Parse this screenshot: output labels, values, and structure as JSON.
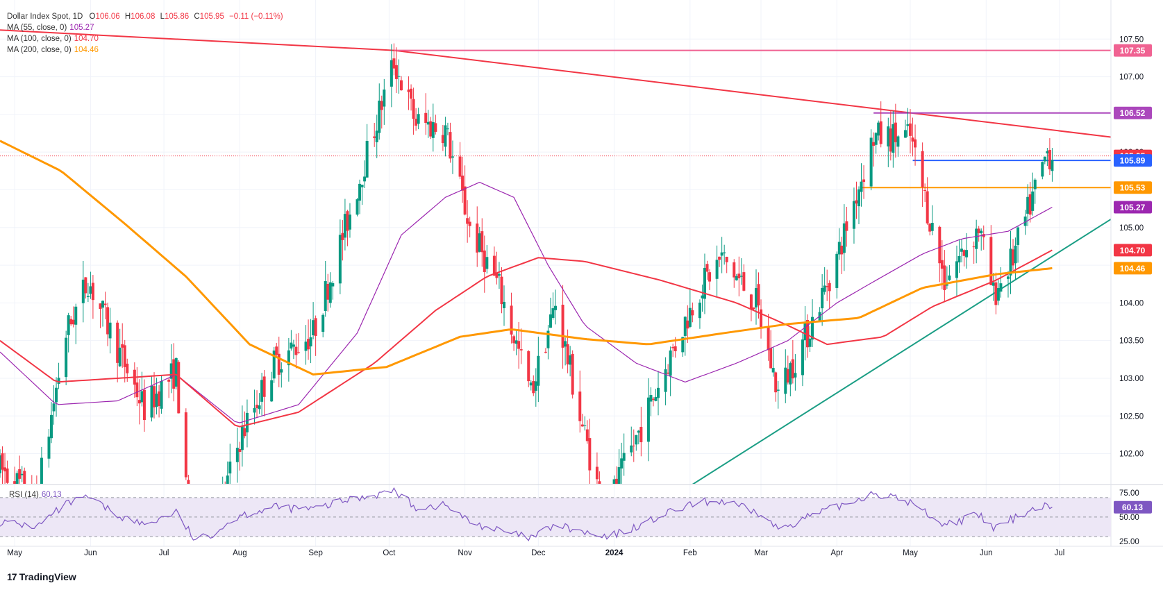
{
  "header": {
    "symbol": "Dollar Index Spot, 1D",
    "ohlc": [
      {
        "label": "O",
        "value": "106.06"
      },
      {
        "label": "H",
        "value": "106.08"
      },
      {
        "label": "L",
        "value": "105.86"
      },
      {
        "label": "C",
        "value": "105.95"
      }
    ],
    "change": "−0.11 (−0.11%)"
  },
  "indicators": [
    {
      "label": "MA (55, close, 0)",
      "value": "105.27",
      "color": "#9c27b0"
    },
    {
      "label": "MA (100, close, 0)",
      "value": "104.70",
      "color": "#f23645"
    },
    {
      "label": "MA (200, close, 0)",
      "value": "104.46",
      "color": "#ff9800"
    }
  ],
  "rsi": {
    "label": "RSI (14)",
    "value": "60.13",
    "color": "#7e57c2"
  },
  "brand": {
    "logo": "17",
    "name": "TradingView"
  },
  "colors": {
    "up": "#089981",
    "down": "#f23645",
    "ma55": "#9c27b0",
    "ma100": "#f23645",
    "ma200": "#ff9800",
    "trend_up": "#1b9e85",
    "trend_down": "#f23645",
    "level_107_35": "#f06292",
    "level_106_52": "#ab47bc",
    "level_105_89": "#2962ff",
    "level_105_53": "#ff9800",
    "price_last": "#f23645",
    "rsi_line": "#7e57c2",
    "rsi_fill": "#ede7f6"
  },
  "chart_data": {
    "type": "candlestick",
    "title": "Dollar Index Spot, 1D",
    "y_ticks": [
      "107.50",
      "107.00",
      "106.50",
      "106.00",
      "105.50",
      "105.00",
      "104.50",
      "104.00",
      "103.50",
      "103.00",
      "102.50",
      "102.00"
    ],
    "ylim": [
      101.6,
      107.65
    ],
    "x_labels": [
      "May",
      "Jun",
      "Jul",
      "Aug",
      "Sep",
      "Oct",
      "Nov",
      "Dec",
      "2024",
      "Feb",
      "Mar",
      "Apr",
      "May",
      "Jun",
      "Jul"
    ],
    "x_range": [
      "2023-04-25",
      "2024-07-22"
    ],
    "last_price": {
      "value": 105.95,
      "label": "105.95"
    },
    "price_labels": [
      {
        "value": 107.35,
        "label": "107.35",
        "color": "#f06292"
      },
      {
        "value": 106.52,
        "label": "106.52",
        "color": "#ab47bc"
      },
      {
        "value": 105.95,
        "label": "105.95",
        "color": "#f23645"
      },
      {
        "value": 105.89,
        "label": "105.89",
        "color": "#2962ff"
      },
      {
        "value": 105.53,
        "label": "105.53",
        "color": "#ff9800"
      },
      {
        "value": 105.27,
        "label": "105.27",
        "color": "#9c27b0"
      },
      {
        "value": 104.7,
        "label": "104.70",
        "color": "#f23645"
      },
      {
        "value": 104.46,
        "label": "104.46",
        "color": "#ff9800"
      }
    ],
    "horizontal_levels": [
      {
        "value": 107.35,
        "from": "2023-10-03",
        "to": "2024-07-22",
        "color": "#f06292"
      },
      {
        "value": 106.52,
        "from": "2024-04-16",
        "to": "2024-07-22",
        "color": "#ab47bc"
      },
      {
        "value": 105.89,
        "from": "2024-05-02",
        "to": "2024-07-22",
        "color": "#2962ff"
      },
      {
        "value": 105.53,
        "from": "2024-04-11",
        "to": "2024-07-22",
        "color": "#ff9800"
      }
    ],
    "trendlines": [
      {
        "name": "resistance",
        "points": [
          [
            "2023-04-25",
            107.62
          ],
          [
            "2023-10-03",
            107.35
          ],
          [
            "2024-07-22",
            106.2
          ]
        ],
        "color": "#f23645"
      },
      {
        "name": "support",
        "points": [
          [
            "2024-01-31",
            101.55
          ],
          [
            "2024-07-22",
            105.11
          ]
        ],
        "color": "#1b9e85"
      }
    ],
    "price_path": [
      [
        "2023-04-25",
        101.8
      ],
      [
        "2023-05-10",
        101.4
      ],
      [
        "2023-05-22",
        103.6
      ],
      [
        "2023-05-31",
        104.3
      ],
      [
        "2023-06-12",
        103.4
      ],
      [
        "2023-06-23",
        102.6
      ],
      [
        "2023-07-06",
        103.1
      ],
      [
        "2023-07-14",
        99.9
      ],
      [
        "2023-07-20",
        100.8
      ],
      [
        "2023-08-01",
        102.2
      ],
      [
        "2023-08-15",
        103.2
      ],
      [
        "2023-08-31",
        103.6
      ],
      [
        "2023-09-15",
        105.2
      ],
      [
        "2023-10-03",
        107.2
      ],
      [
        "2023-10-12",
        106.4
      ],
      [
        "2023-10-24",
        106.3
      ],
      [
        "2023-11-03",
        105.0
      ],
      [
        "2023-11-15",
        104.2
      ],
      [
        "2023-11-28",
        102.8
      ],
      [
        "2023-12-08",
        104.0
      ],
      [
        "2023-12-18",
        102.5
      ],
      [
        "2023-12-28",
        101.2
      ],
      [
        "2024-01-10",
        102.2
      ],
      [
        "2024-01-24",
        103.3
      ],
      [
        "2024-02-05",
        104.2
      ],
      [
        "2024-02-14",
        104.6
      ],
      [
        "2024-02-28",
        104.0
      ],
      [
        "2024-03-08",
        102.8
      ],
      [
        "2024-03-20",
        103.6
      ],
      [
        "2024-04-01",
        104.6
      ],
      [
        "2024-04-16",
        106.2
      ],
      [
        "2024-05-01",
        106.2
      ],
      [
        "2024-05-15",
        104.3
      ],
      [
        "2024-05-29",
        105.0
      ],
      [
        "2024-06-04",
        104.1
      ],
      [
        "2024-06-12",
        104.6
      ],
      [
        "2024-06-19",
        105.3
      ],
      [
        "2024-06-26",
        106.0
      ],
      [
        "2024-06-28",
        105.95
      ]
    ],
    "series": [
      {
        "name": "MA (55, close, 0)",
        "color": "#9c27b0",
        "points": [
          [
            "2023-04-25",
            103.35
          ],
          [
            "2023-05-18",
            102.65
          ],
          [
            "2023-06-12",
            102.7
          ],
          [
            "2023-07-06",
            103.05
          ],
          [
            "2023-07-31",
            102.4
          ],
          [
            "2023-08-25",
            102.65
          ],
          [
            "2023-09-18",
            103.6
          ],
          [
            "2023-10-06",
            104.9
          ],
          [
            "2023-10-24",
            105.4
          ],
          [
            "2023-11-07",
            105.6
          ],
          [
            "2023-11-21",
            105.4
          ],
          [
            "2023-12-05",
            104.5
          ],
          [
            "2023-12-20",
            103.7
          ],
          [
            "2024-01-10",
            103.2
          ],
          [
            "2024-01-30",
            102.95
          ],
          [
            "2024-02-20",
            103.2
          ],
          [
            "2024-03-12",
            103.5
          ],
          [
            "2024-04-01",
            104.0
          ],
          [
            "2024-04-17",
            104.3
          ],
          [
            "2024-05-06",
            104.65
          ],
          [
            "2024-05-22",
            104.85
          ],
          [
            "2024-06-10",
            104.95
          ],
          [
            "2024-06-28",
            105.27
          ]
        ]
      },
      {
        "name": "MA (100, close, 0)",
        "color": "#f23645",
        "points": [
          [
            "2023-04-25",
            103.5
          ],
          [
            "2023-05-18",
            102.95
          ],
          [
            "2023-06-12",
            103.0
          ],
          [
            "2023-07-06",
            103.05
          ],
          [
            "2023-07-31",
            102.35
          ],
          [
            "2023-08-25",
            102.55
          ],
          [
            "2023-09-25",
            103.2
          ],
          [
            "2023-10-20",
            103.9
          ],
          [
            "2023-11-10",
            104.35
          ],
          [
            "2023-12-01",
            104.6
          ],
          [
            "2023-12-20",
            104.55
          ],
          [
            "2024-01-20",
            104.3
          ],
          [
            "2024-02-20",
            104.0
          ],
          [
            "2024-03-12",
            103.7
          ],
          [
            "2024-03-28",
            103.45
          ],
          [
            "2024-04-20",
            103.55
          ],
          [
            "2024-05-10",
            103.95
          ],
          [
            "2024-06-05",
            104.3
          ],
          [
            "2024-06-28",
            104.7
          ]
        ]
      },
      {
        "name": "MA (200, close, 0)",
        "color": "#ff9800",
        "points": [
          [
            "2023-04-25",
            106.15
          ],
          [
            "2023-05-20",
            105.75
          ],
          [
            "2023-06-15",
            105.05
          ],
          [
            "2023-07-10",
            104.35
          ],
          [
            "2023-08-05",
            103.45
          ],
          [
            "2023-08-31",
            103.05
          ],
          [
            "2023-09-30",
            103.15
          ],
          [
            "2023-10-30",
            103.55
          ],
          [
            "2023-11-20",
            103.65
          ],
          [
            "2023-12-20",
            103.52
          ],
          [
            "2024-01-15",
            103.45
          ],
          [
            "2024-02-15",
            103.6
          ],
          [
            "2024-03-12",
            103.72
          ],
          [
            "2024-04-10",
            103.8
          ],
          [
            "2024-05-06",
            104.2
          ],
          [
            "2024-06-05",
            104.38
          ],
          [
            "2024-06-28",
            104.46
          ]
        ]
      }
    ],
    "rsi": {
      "name": "RSI (14)",
      "ylim": [
        20,
        82
      ],
      "y_ticks": [
        "75.00",
        "50.00",
        "25.00"
      ],
      "bands": [
        70,
        50,
        30
      ],
      "last": 60.13,
      "points": [
        [
          "2023-04-25",
          45
        ],
        [
          "2023-05-10",
          40
        ],
        [
          "2023-05-22",
          63
        ],
        [
          "2023-05-31",
          70
        ],
        [
          "2023-06-12",
          52
        ],
        [
          "2023-06-23",
          42
        ],
        [
          "2023-07-06",
          55
        ],
        [
          "2023-07-14",
          25
        ],
        [
          "2023-07-20",
          32
        ],
        [
          "2023-08-01",
          52
        ],
        [
          "2023-08-15",
          60
        ],
        [
          "2023-08-31",
          58
        ],
        [
          "2023-09-15",
          68
        ],
        [
          "2023-10-03",
          77
        ],
        [
          "2023-10-12",
          60
        ],
        [
          "2023-10-24",
          62
        ],
        [
          "2023-11-03",
          45
        ],
        [
          "2023-11-15",
          36
        ],
        [
          "2023-11-28",
          28
        ],
        [
          "2023-12-08",
          42
        ],
        [
          "2023-12-18",
          35
        ],
        [
          "2023-12-28",
          28
        ],
        [
          "2024-01-10",
          40
        ],
        [
          "2024-01-24",
          55
        ],
        [
          "2024-02-05",
          65
        ],
        [
          "2024-02-14",
          66
        ],
        [
          "2024-02-28",
          55
        ],
        [
          "2024-03-08",
          38
        ],
        [
          "2024-03-20",
          50
        ],
        [
          "2024-04-01",
          60
        ],
        [
          "2024-04-16",
          75
        ],
        [
          "2024-05-01",
          65
        ],
        [
          "2024-05-15",
          42
        ],
        [
          "2024-05-29",
          52
        ],
        [
          "2024-06-04",
          38
        ],
        [
          "2024-06-12",
          48
        ],
        [
          "2024-06-19",
          58
        ],
        [
          "2024-06-26",
          62
        ],
        [
          "2024-06-28",
          60.13
        ]
      ]
    }
  }
}
